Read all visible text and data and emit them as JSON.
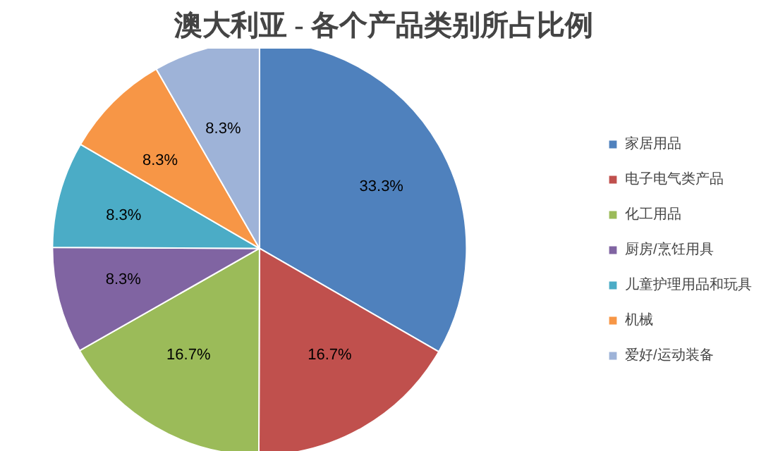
{
  "chart_data": {
    "type": "pie",
    "title": "澳大利亚 - 各个产品类别所占比例",
    "categories": [
      "家居用品",
      "电子电气类产品",
      "化工用品",
      "厨房/烹饪用具",
      "儿童护理用品和玩具",
      "机械",
      "爱好/运动装备"
    ],
    "values": [
      33.3,
      16.7,
      16.7,
      8.3,
      8.3,
      8.3,
      8.3
    ],
    "colors": [
      "#4f81bd",
      "#c0504d",
      "#9bbb59",
      "#8064a2",
      "#4bacc6",
      "#f79646",
      "#9eb3d8"
    ],
    "value_labels": [
      "33.3%",
      "16.7%",
      "16.7%",
      "8.3%",
      "8.3%",
      "8.3%",
      "8.3%"
    ],
    "legend": "right"
  }
}
